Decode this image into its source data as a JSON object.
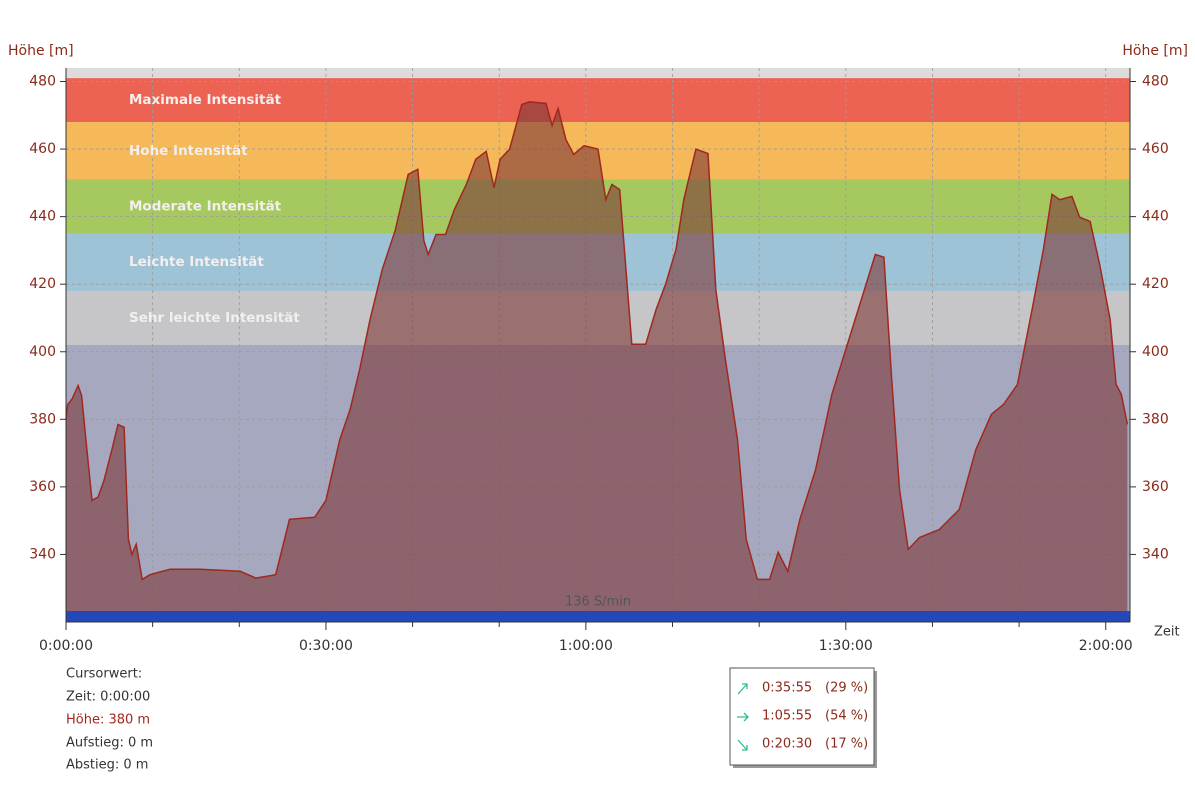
{
  "chart_data": {
    "type": "area",
    "y_label": "Höhe [m]",
    "y2_label": "Höhe [m]",
    "x_label": "Zeit",
    "x": [
      0,
      0.2,
      0.7,
      1.4,
      1.8,
      2.3,
      3.0,
      3.7,
      4.4,
      5.3,
      6.0,
      6.7,
      7.2,
      7.6,
      8.1,
      8.8,
      9.7,
      12.0,
      15.5,
      20.1,
      21.9,
      24.2,
      25.8,
      28.7,
      30,
      31.6,
      32.8,
      33.9,
      35.1,
      36.5,
      38,
      39.5,
      40.6,
      41.3,
      41.8,
      42.7,
      43.8,
      44.8,
      46.2,
      47.3,
      48.5,
      49.4,
      50.1,
      51.2,
      52.6,
      53.5,
      55.4,
      56.1,
      56.8,
      57.7,
      58.6,
      59.8,
      61.4,
      62.3,
      63.0,
      63.9,
      65.3,
      66.9,
      68.1,
      69.2,
      70.4,
      71.3,
      72.7,
      74.1,
      75.0,
      76.1,
      77.5,
      78.5,
      79.8,
      81.2,
      82.2,
      83.3,
      84.7,
      86.5,
      88.4,
      90,
      91.8,
      93.4,
      94.4,
      95.3,
      96.2,
      97.2,
      98.5,
      100.8,
      103.1,
      105,
      106.8,
      108.2,
      109.8,
      111.5,
      112.8,
      113.8,
      114.7,
      116.1,
      117.0,
      118.2,
      119.3,
      120.5,
      121.2,
      121.8,
      122.5
    ],
    "series": [
      {
        "name": "Höhe",
        "color": "#a0281e",
        "fill": "rgba(125,55,55,0.6)",
        "values": [
          380,
          384.4,
          386,
          390,
          387,
          374,
          356,
          357,
          362,
          371,
          378.5,
          377.6,
          344.5,
          340,
          343,
          332.6,
          334,
          335.6,
          335.6,
          335,
          333,
          334,
          350.4,
          351,
          356,
          374,
          383,
          394.8,
          409.6,
          424.4,
          436,
          452.5,
          454,
          433,
          428.8,
          434.7,
          434.7,
          442,
          449.5,
          457,
          459.3,
          448.6,
          457,
          460,
          473.2,
          474,
          473.5,
          467,
          472,
          462.8,
          458.4,
          461,
          460,
          445,
          449.5,
          448,
          402.2,
          402.2,
          412.5,
          420,
          430.3,
          445,
          460,
          458.7,
          418.4,
          397.7,
          374,
          344.5,
          332.6,
          332.6,
          340.6,
          335,
          350.4,
          365,
          387.4,
          400.7,
          415.5,
          428.8,
          428,
          391.8,
          359.3,
          341.5,
          345,
          347.4,
          353.3,
          371,
          381.5,
          384.4,
          390.3,
          412.5,
          430.3,
          446.6,
          445,
          446,
          439.8,
          438.6,
          425.8,
          409.6,
          390.3,
          387.4,
          378.5
        ]
      }
    ],
    "zones": [
      {
        "name": "Maximale Intensität",
        "from": 468,
        "to": 481,
        "color": "#ec6353"
      },
      {
        "name": "Hohe Intensität",
        "from": 451,
        "to": 468,
        "color": "#f5b95a"
      },
      {
        "name": "Moderate Intensität",
        "from": 435,
        "to": 451,
        "color": "#a6c95f"
      },
      {
        "name": "Leichte Intensität",
        "from": 418,
        "to": 435,
        "color": "#9fc3d6"
      },
      {
        "name": "Sehr leichte Intensität",
        "from": 402,
        "to": 418,
        "color": "#c6c6c8"
      }
    ],
    "cadence": {
      "label": "136 S/min",
      "color": "#2548b8"
    },
    "xlim": [
      0,
      122.8
    ],
    "ylim": [
      320,
      484
    ],
    "y2lim": [
      320,
      484
    ],
    "xticks": [
      {
        "value": 0,
        "label": "0:00:00"
      },
      {
        "value": 30,
        "label": "0:30:00"
      },
      {
        "value": 60,
        "label": "1:00:00"
      },
      {
        "value": 90,
        "label": "1:30:00"
      },
      {
        "value": 120,
        "label": "2:00:00"
      }
    ],
    "xminorticks": [
      10,
      20,
      40,
      50,
      70,
      80,
      100,
      110
    ],
    "yticks": [
      340,
      360,
      380,
      400,
      420,
      440,
      460,
      480
    ],
    "y2ticks": [
      340,
      360,
      380,
      400,
      420,
      440,
      460,
      480
    ],
    "grid": true
  },
  "cursor": {
    "title": "Cursorwert:",
    "time": "Zeit: 0:00:00",
    "height": "Höhe:  380 m",
    "ascent": "Aufstieg: 0 m",
    "descent": "Abstieg: 0 m"
  },
  "stats": [
    {
      "time": "0:35:55",
      "percent": 29,
      "percent_label": "(29 %)"
    },
    {
      "time": "1:05:55",
      "percent": 54,
      "percent_label": "(54 %)"
    },
    {
      "time": "0:20:30",
      "percent": 17,
      "percent_label": "(17 %)"
    }
  ]
}
